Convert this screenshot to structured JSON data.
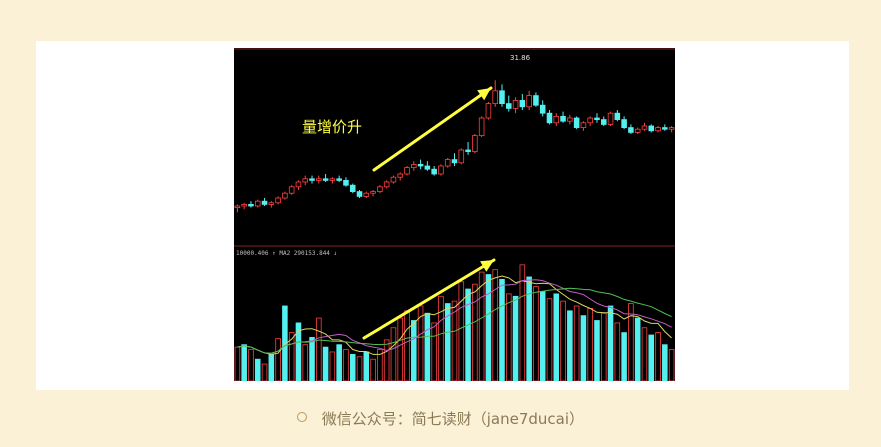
{
  "caption": {
    "text": "微信公众号：简七读财（jane7ducai）",
    "bullet_icon": "circle-bullet-icon"
  },
  "colors": {
    "background": "#fbf1d6",
    "chart_bg": "#000000",
    "up": "#ff4040",
    "down": "#54f0f0",
    "arrow": "#ffff40",
    "ma_yellow": "#d8d860",
    "ma_purple": "#c060c0",
    "ma_green": "#50c050"
  },
  "chart_data": [
    {
      "type": "candlestick",
      "annotation": "量增价升",
      "peak_label": "31.86",
      "ylim": [
        22,
        33
      ],
      "x_count": 70,
      "candles": [
        [
          23.9,
          24.1,
          23.6,
          24.0
        ],
        [
          24.0,
          24.2,
          23.8,
          24.1
        ],
        [
          24.1,
          24.3,
          23.9,
          24.0
        ],
        [
          24.0,
          24.4,
          23.9,
          24.3
        ],
        [
          24.3,
          24.5,
          24.0,
          24.1
        ],
        [
          24.1,
          24.3,
          23.9,
          24.2
        ],
        [
          24.2,
          24.6,
          24.1,
          24.5
        ],
        [
          24.5,
          24.9,
          24.4,
          24.8
        ],
        [
          24.8,
          25.3,
          24.7,
          25.2
        ],
        [
          25.2,
          25.6,
          25.0,
          25.5
        ],
        [
          25.5,
          25.9,
          25.3,
          25.7
        ],
        [
          25.7,
          25.9,
          25.4,
          25.6
        ],
        [
          25.6,
          25.9,
          25.4,
          25.7
        ],
        [
          25.7,
          26.0,
          25.5,
          25.6
        ],
        [
          25.6,
          25.8,
          25.4,
          25.7
        ],
        [
          25.7,
          25.9,
          25.5,
          25.6
        ],
        [
          25.6,
          25.8,
          25.2,
          25.3
        ],
        [
          25.3,
          25.4,
          24.8,
          24.9
        ],
        [
          24.9,
          25.0,
          24.5,
          24.6
        ],
        [
          24.6,
          24.9,
          24.5,
          24.8
        ],
        [
          24.8,
          25.0,
          24.6,
          24.9
        ],
        [
          24.9,
          25.3,
          24.8,
          25.2
        ],
        [
          25.2,
          25.6,
          25.1,
          25.5
        ],
        [
          25.5,
          25.9,
          25.4,
          25.8
        ],
        [
          25.8,
          26.1,
          25.6,
          26.0
        ],
        [
          26.0,
          26.5,
          25.9,
          26.4
        ],
        [
          26.4,
          26.8,
          26.2,
          26.6
        ],
        [
          26.6,
          26.9,
          26.3,
          26.5
        ],
        [
          26.5,
          26.8,
          26.2,
          26.3
        ],
        [
          26.3,
          26.5,
          25.9,
          26.0
        ],
        [
          26.0,
          26.6,
          25.9,
          26.5
        ],
        [
          26.5,
          27.0,
          26.4,
          26.9
        ],
        [
          26.9,
          27.3,
          26.5,
          26.7
        ],
        [
          26.7,
          27.6,
          26.6,
          27.5
        ],
        [
          27.5,
          28.0,
          27.2,
          27.4
        ],
        [
          27.4,
          28.5,
          27.3,
          28.4
        ],
        [
          28.4,
          29.6,
          28.3,
          29.5
        ],
        [
          29.5,
          30.5,
          29.4,
          30.4
        ],
        [
          30.4,
          31.86,
          30.2,
          31.2
        ],
        [
          31.2,
          31.6,
          30.2,
          30.4
        ],
        [
          30.4,
          30.9,
          29.9,
          30.1
        ],
        [
          30.1,
          30.8,
          29.8,
          30.6
        ],
        [
          30.6,
          31.0,
          30.0,
          30.2
        ],
        [
          30.2,
          31.2,
          30.0,
          30.9
        ],
        [
          30.9,
          31.1,
          30.2,
          30.3
        ],
        [
          30.3,
          30.6,
          29.6,
          29.8
        ],
        [
          29.8,
          30.0,
          29.1,
          29.2
        ],
        [
          29.2,
          29.8,
          29.0,
          29.6
        ],
        [
          29.6,
          29.9,
          29.2,
          29.3
        ],
        [
          29.3,
          29.7,
          29.1,
          29.5
        ],
        [
          29.5,
          29.6,
          28.8,
          28.9
        ],
        [
          28.9,
          29.3,
          28.7,
          29.2
        ],
        [
          29.2,
          29.6,
          29.0,
          29.5
        ],
        [
          29.5,
          29.8,
          29.2,
          29.4
        ],
        [
          29.4,
          29.6,
          29.0,
          29.1
        ],
        [
          29.1,
          29.9,
          29.0,
          29.8
        ],
        [
          29.8,
          30.0,
          29.3,
          29.4
        ],
        [
          29.4,
          29.6,
          28.8,
          28.9
        ],
        [
          28.9,
          29.1,
          28.5,
          28.6
        ],
        [
          28.6,
          28.9,
          28.5,
          28.8
        ],
        [
          28.8,
          29.2,
          28.7,
          29.0
        ],
        [
          29.0,
          29.1,
          28.6,
          28.7
        ],
        [
          28.7,
          29.0,
          28.6,
          28.9
        ],
        [
          28.9,
          29.1,
          28.7,
          28.8
        ],
        [
          28.8,
          29.0,
          28.6,
          28.9
        ]
      ]
    },
    {
      "type": "volume",
      "legend": "10000.406 ↑ MA2 290153.844 ↓",
      "volume_annotation_icon": "arrow-icon",
      "ylim": [
        0,
        100
      ],
      "bars": [
        [
          28,
          1
        ],
        [
          30,
          0
        ],
        [
          26,
          1
        ],
        [
          18,
          0
        ],
        [
          14,
          1
        ],
        [
          22,
          0
        ],
        [
          35,
          1
        ],
        [
          62,
          0
        ],
        [
          40,
          1
        ],
        [
          48,
          0
        ],
        [
          30,
          1
        ],
        [
          36,
          0
        ],
        [
          52,
          1
        ],
        [
          28,
          0
        ],
        [
          24,
          1
        ],
        [
          30,
          0
        ],
        [
          26,
          1
        ],
        [
          22,
          0
        ],
        [
          20,
          1
        ],
        [
          24,
          0
        ],
        [
          18,
          1
        ],
        [
          26,
          1
        ],
        [
          34,
          1
        ],
        [
          44,
          1
        ],
        [
          52,
          1
        ],
        [
          58,
          1
        ],
        [
          50,
          0
        ],
        [
          62,
          1
        ],
        [
          56,
          0
        ],
        [
          48,
          1
        ],
        [
          70,
          1
        ],
        [
          64,
          0
        ],
        [
          66,
          1
        ],
        [
          82,
          1
        ],
        [
          76,
          0
        ],
        [
          80,
          1
        ],
        [
          90,
          1
        ],
        [
          88,
          0
        ],
        [
          92,
          1
        ],
        [
          84,
          0
        ],
        [
          72,
          1
        ],
        [
          70,
          0
        ],
        [
          96,
          1
        ],
        [
          86,
          0
        ],
        [
          78,
          1
        ],
        [
          74,
          0
        ],
        [
          68,
          1
        ],
        [
          72,
          0
        ],
        [
          66,
          1
        ],
        [
          58,
          0
        ],
        [
          62,
          1
        ],
        [
          54,
          0
        ],
        [
          60,
          1
        ],
        [
          50,
          0
        ],
        [
          56,
          1
        ],
        [
          62,
          0
        ],
        [
          48,
          1
        ],
        [
          40,
          0
        ],
        [
          64,
          1
        ],
        [
          52,
          0
        ],
        [
          44,
          1
        ],
        [
          38,
          0
        ],
        [
          40,
          1
        ],
        [
          30,
          0
        ],
        [
          26,
          1
        ]
      ]
    }
  ]
}
